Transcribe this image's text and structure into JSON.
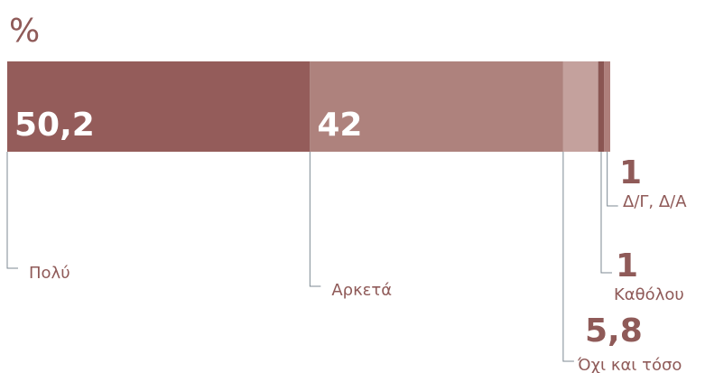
{
  "chart_data": {
    "type": "bar",
    "orientation": "horizontal",
    "stacked": true,
    "title": "%",
    "xlim": [
      0,
      100
    ],
    "series": [
      {
        "name": "Πολύ",
        "color": "#945c5a",
        "values": [
          50.2
        ],
        "value_labels": [
          "50,2"
        ]
      },
      {
        "name": "Αρκετά",
        "color": "#ae827d",
        "values": [
          42
        ],
        "value_labels": [
          "42"
        ]
      },
      {
        "name": "Όχι και τόσο",
        "color": "#c4a19d",
        "values": [
          5.8
        ],
        "value_labels": [
          "5,8"
        ]
      },
      {
        "name": "Καθόλου",
        "color": "#8a5552",
        "values": [
          1
        ],
        "value_labels": [
          "1"
        ]
      },
      {
        "name": "Δ/Γ, Δ/Α",
        "color": "#ae7f7b",
        "values": [
          1
        ],
        "value_labels": [
          "1"
        ]
      }
    ]
  }
}
